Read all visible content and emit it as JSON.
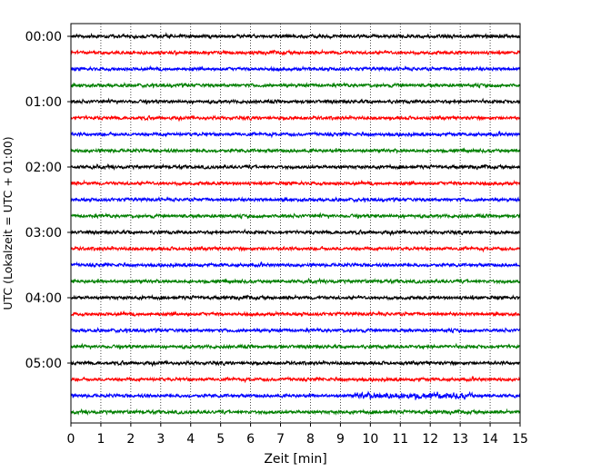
{
  "chart_data": {
    "type": "line",
    "title": "",
    "xlabel": "Zeit  [min]",
    "ylabel": "UTC (Lokalzeit = UTC + 01:00)",
    "xlim": [
      0,
      15
    ],
    "x_ticks": [
      "0",
      "1",
      "2",
      "3",
      "4",
      "5",
      "6",
      "7",
      "8",
      "9",
      "10",
      "11",
      "12",
      "13",
      "14",
      "15"
    ],
    "y_ticks": [
      "00:00",
      "01:00",
      "02:00",
      "03:00",
      "04:00",
      "05:00"
    ],
    "trace_interval_minutes": 15,
    "trace_count": 24,
    "trace_color_cycle": [
      "#000000",
      "#ff0000",
      "#0000ff",
      "#007f00"
    ],
    "grid": "vertical dotted lines at each minute",
    "legend": "none"
  }
}
